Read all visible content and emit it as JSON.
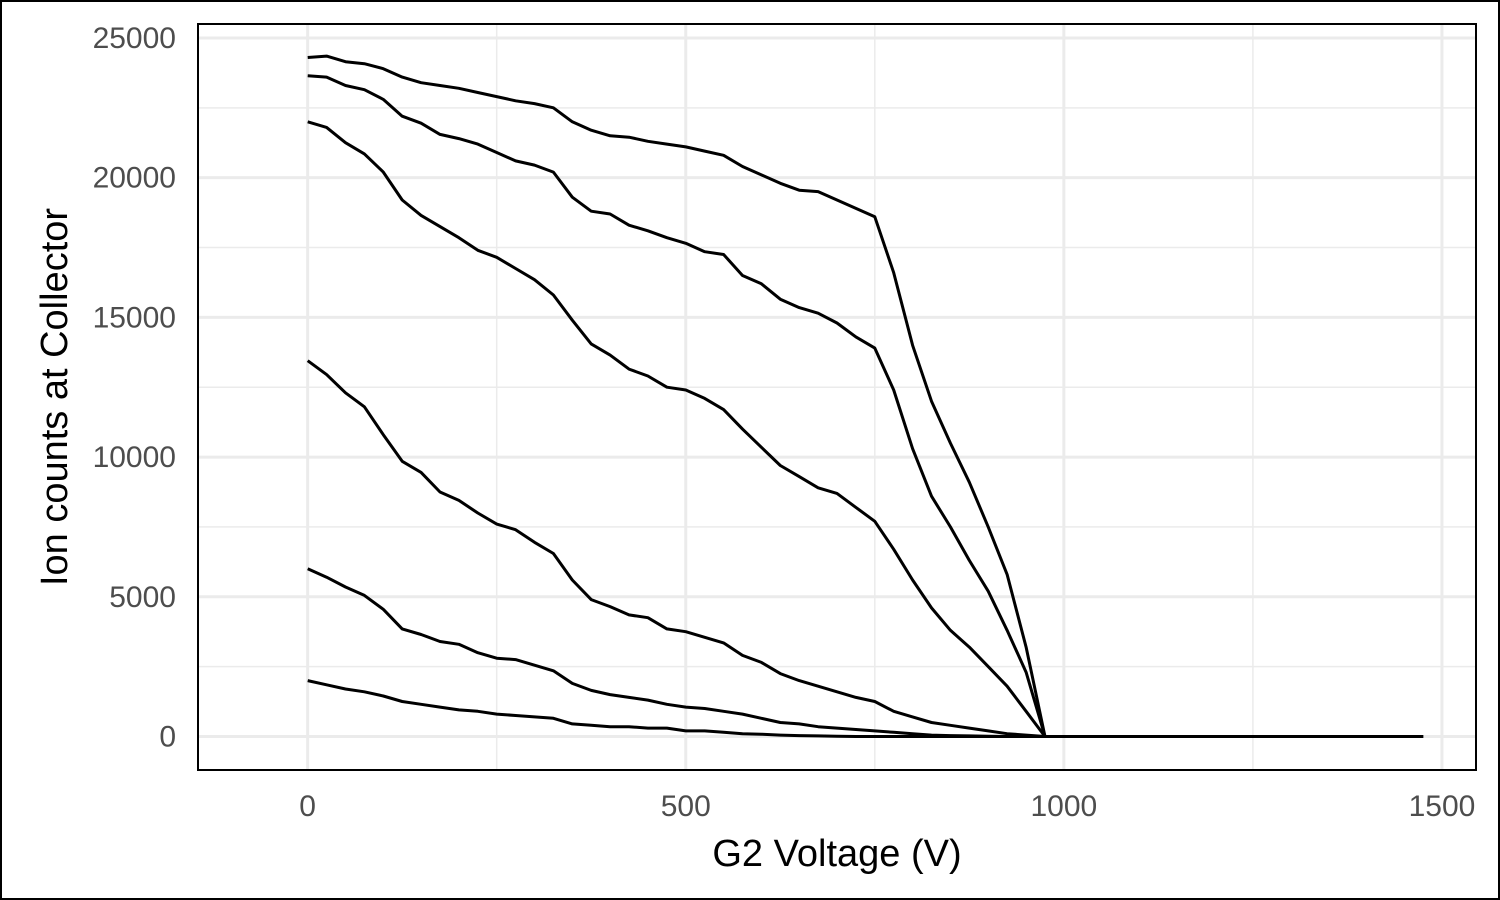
{
  "chart_data": {
    "type": "line",
    "title": "",
    "xlabel": "G2 Voltage (V)",
    "ylabel": "Ion counts at Collector",
    "xlim": [
      -145,
      1545
    ],
    "ylim": [
      -1200,
      25500
    ],
    "x_ticks": [
      0,
      500,
      1000,
      1500
    ],
    "y_ticks": [
      0,
      5000,
      10000,
      15000,
      20000,
      25000
    ],
    "x_minor_gridlines": [
      250,
      750,
      1250
    ],
    "y_minor_gridlines": [
      2500,
      7500,
      12500,
      17500,
      22500
    ],
    "grid": true,
    "legend": "none",
    "line_color": "#000000",
    "series": [
      {
        "x": [
          0,
          25,
          50,
          75,
          100,
          125,
          150,
          175,
          200,
          225,
          250,
          275,
          300,
          325,
          350,
          375,
          400,
          425,
          450,
          475,
          500,
          525,
          550,
          575,
          600,
          625,
          650,
          675,
          700,
          725,
          750,
          775,
          800,
          825,
          850,
          875,
          900,
          925,
          950,
          975,
          1000,
          1050,
          1100,
          1200,
          1300,
          1400,
          1475
        ],
        "y": [
          24300,
          24350,
          24150,
          24080,
          23900,
          23600,
          23400,
          23300,
          23200,
          23050,
          22900,
          22750,
          22650,
          22500,
          22000,
          21700,
          21500,
          21450,
          21300,
          21200,
          21100,
          20950,
          20800,
          20400,
          20100,
          19800,
          19550,
          19500,
          19200,
          18900,
          18600,
          16600,
          14000,
          12000,
          10500,
          9100,
          7500,
          5800,
          3200,
          0,
          0,
          0,
          0,
          0,
          0,
          0,
          0
        ]
      },
      {
        "x": [
          0,
          25,
          50,
          75,
          100,
          125,
          150,
          175,
          200,
          225,
          250,
          275,
          300,
          325,
          350,
          375,
          400,
          425,
          450,
          475,
          500,
          525,
          550,
          575,
          600,
          625,
          650,
          675,
          700,
          725,
          750,
          775,
          800,
          825,
          850,
          875,
          900,
          925,
          950,
          975,
          1000,
          1050,
          1100,
          1200,
          1300,
          1400,
          1475
        ],
        "y": [
          23650,
          23600,
          23300,
          23150,
          22800,
          22200,
          21950,
          21550,
          21400,
          21200,
          20900,
          20600,
          20450,
          20200,
          19300,
          18800,
          18700,
          18300,
          18100,
          17850,
          17650,
          17350,
          17250,
          16500,
          16200,
          15650,
          15350,
          15150,
          14800,
          14300,
          13900,
          12400,
          10300,
          8600,
          7500,
          6300,
          5200,
          3800,
          2300,
          0,
          0,
          0,
          0,
          0,
          0,
          0,
          0
        ]
      },
      {
        "x": [
          0,
          25,
          50,
          75,
          100,
          125,
          150,
          175,
          200,
          225,
          250,
          275,
          300,
          325,
          350,
          375,
          400,
          425,
          450,
          475,
          500,
          525,
          550,
          575,
          600,
          625,
          650,
          675,
          700,
          725,
          750,
          775,
          800,
          825,
          850,
          875,
          900,
          925,
          950,
          975,
          1000,
          1050,
          1100,
          1200,
          1300,
          1400,
          1475
        ],
        "y": [
          22000,
          21800,
          21250,
          20850,
          20200,
          19200,
          18650,
          18250,
          17850,
          17400,
          17150,
          16750,
          16350,
          15800,
          14900,
          14050,
          13650,
          13150,
          12900,
          12500,
          12400,
          12100,
          11700,
          11000,
          10350,
          9700,
          9300,
          8900,
          8700,
          8200,
          7700,
          6700,
          5600,
          4600,
          3800,
          3200,
          2500,
          1800,
          900,
          0,
          0,
          0,
          0,
          0,
          0,
          0,
          0
        ]
      },
      {
        "x": [
          0,
          25,
          50,
          75,
          100,
          125,
          150,
          175,
          200,
          225,
          250,
          275,
          300,
          325,
          350,
          375,
          400,
          425,
          450,
          475,
          500,
          525,
          550,
          575,
          600,
          625,
          650,
          675,
          700,
          725,
          750,
          775,
          800,
          825,
          850,
          875,
          900,
          925,
          950,
          975,
          1000,
          1050,
          1100,
          1200,
          1300,
          1400,
          1475
        ],
        "y": [
          13450,
          12950,
          12300,
          11800,
          10800,
          9850,
          9450,
          8750,
          8450,
          8000,
          7600,
          7400,
          6950,
          6550,
          5600,
          4900,
          4650,
          4350,
          4250,
          3850,
          3750,
          3550,
          3350,
          2900,
          2650,
          2250,
          2000,
          1800,
          1600,
          1400,
          1250,
          900,
          700,
          500,
          400,
          300,
          200,
          100,
          50,
          0,
          0,
          0,
          0,
          0,
          0,
          0,
          0
        ]
      },
      {
        "x": [
          0,
          25,
          50,
          75,
          100,
          125,
          150,
          175,
          200,
          225,
          250,
          275,
          300,
          325,
          350,
          375,
          400,
          425,
          450,
          475,
          500,
          525,
          550,
          575,
          600,
          625,
          650,
          675,
          700,
          725,
          750,
          775,
          800,
          825,
          850,
          875,
          900,
          925,
          950,
          975,
          1000,
          1050,
          1100,
          1200,
          1300,
          1400,
          1475
        ],
        "y": [
          6000,
          5700,
          5350,
          5050,
          4550,
          3850,
          3650,
          3400,
          3300,
          3000,
          2800,
          2750,
          2550,
          2350,
          1900,
          1650,
          1500,
          1400,
          1300,
          1150,
          1050,
          1000,
          900,
          800,
          650,
          500,
          450,
          350,
          300,
          250,
          200,
          150,
          100,
          50,
          30,
          20,
          10,
          0,
          0,
          0,
          0,
          0,
          0,
          0,
          0,
          0,
          0
        ]
      },
      {
        "x": [
          0,
          25,
          50,
          75,
          100,
          125,
          150,
          175,
          200,
          225,
          250,
          275,
          300,
          325,
          350,
          375,
          400,
          425,
          450,
          475,
          500,
          525,
          550,
          575,
          600,
          625,
          650,
          675,
          700,
          725,
          750,
          775,
          800,
          825,
          850,
          875,
          900,
          925,
          950,
          975,
          1000,
          1050,
          1100,
          1200,
          1300,
          1400,
          1475
        ],
        "y": [
          2000,
          1850,
          1700,
          1600,
          1450,
          1250,
          1150,
          1050,
          950,
          900,
          800,
          750,
          700,
          650,
          450,
          400,
          350,
          350,
          300,
          300,
          200,
          200,
          150,
          100,
          80,
          50,
          30,
          20,
          10,
          0,
          0,
          0,
          0,
          0,
          0,
          0,
          0,
          0,
          0,
          0,
          0,
          0,
          0,
          0,
          0,
          0,
          0
        ]
      }
    ]
  }
}
